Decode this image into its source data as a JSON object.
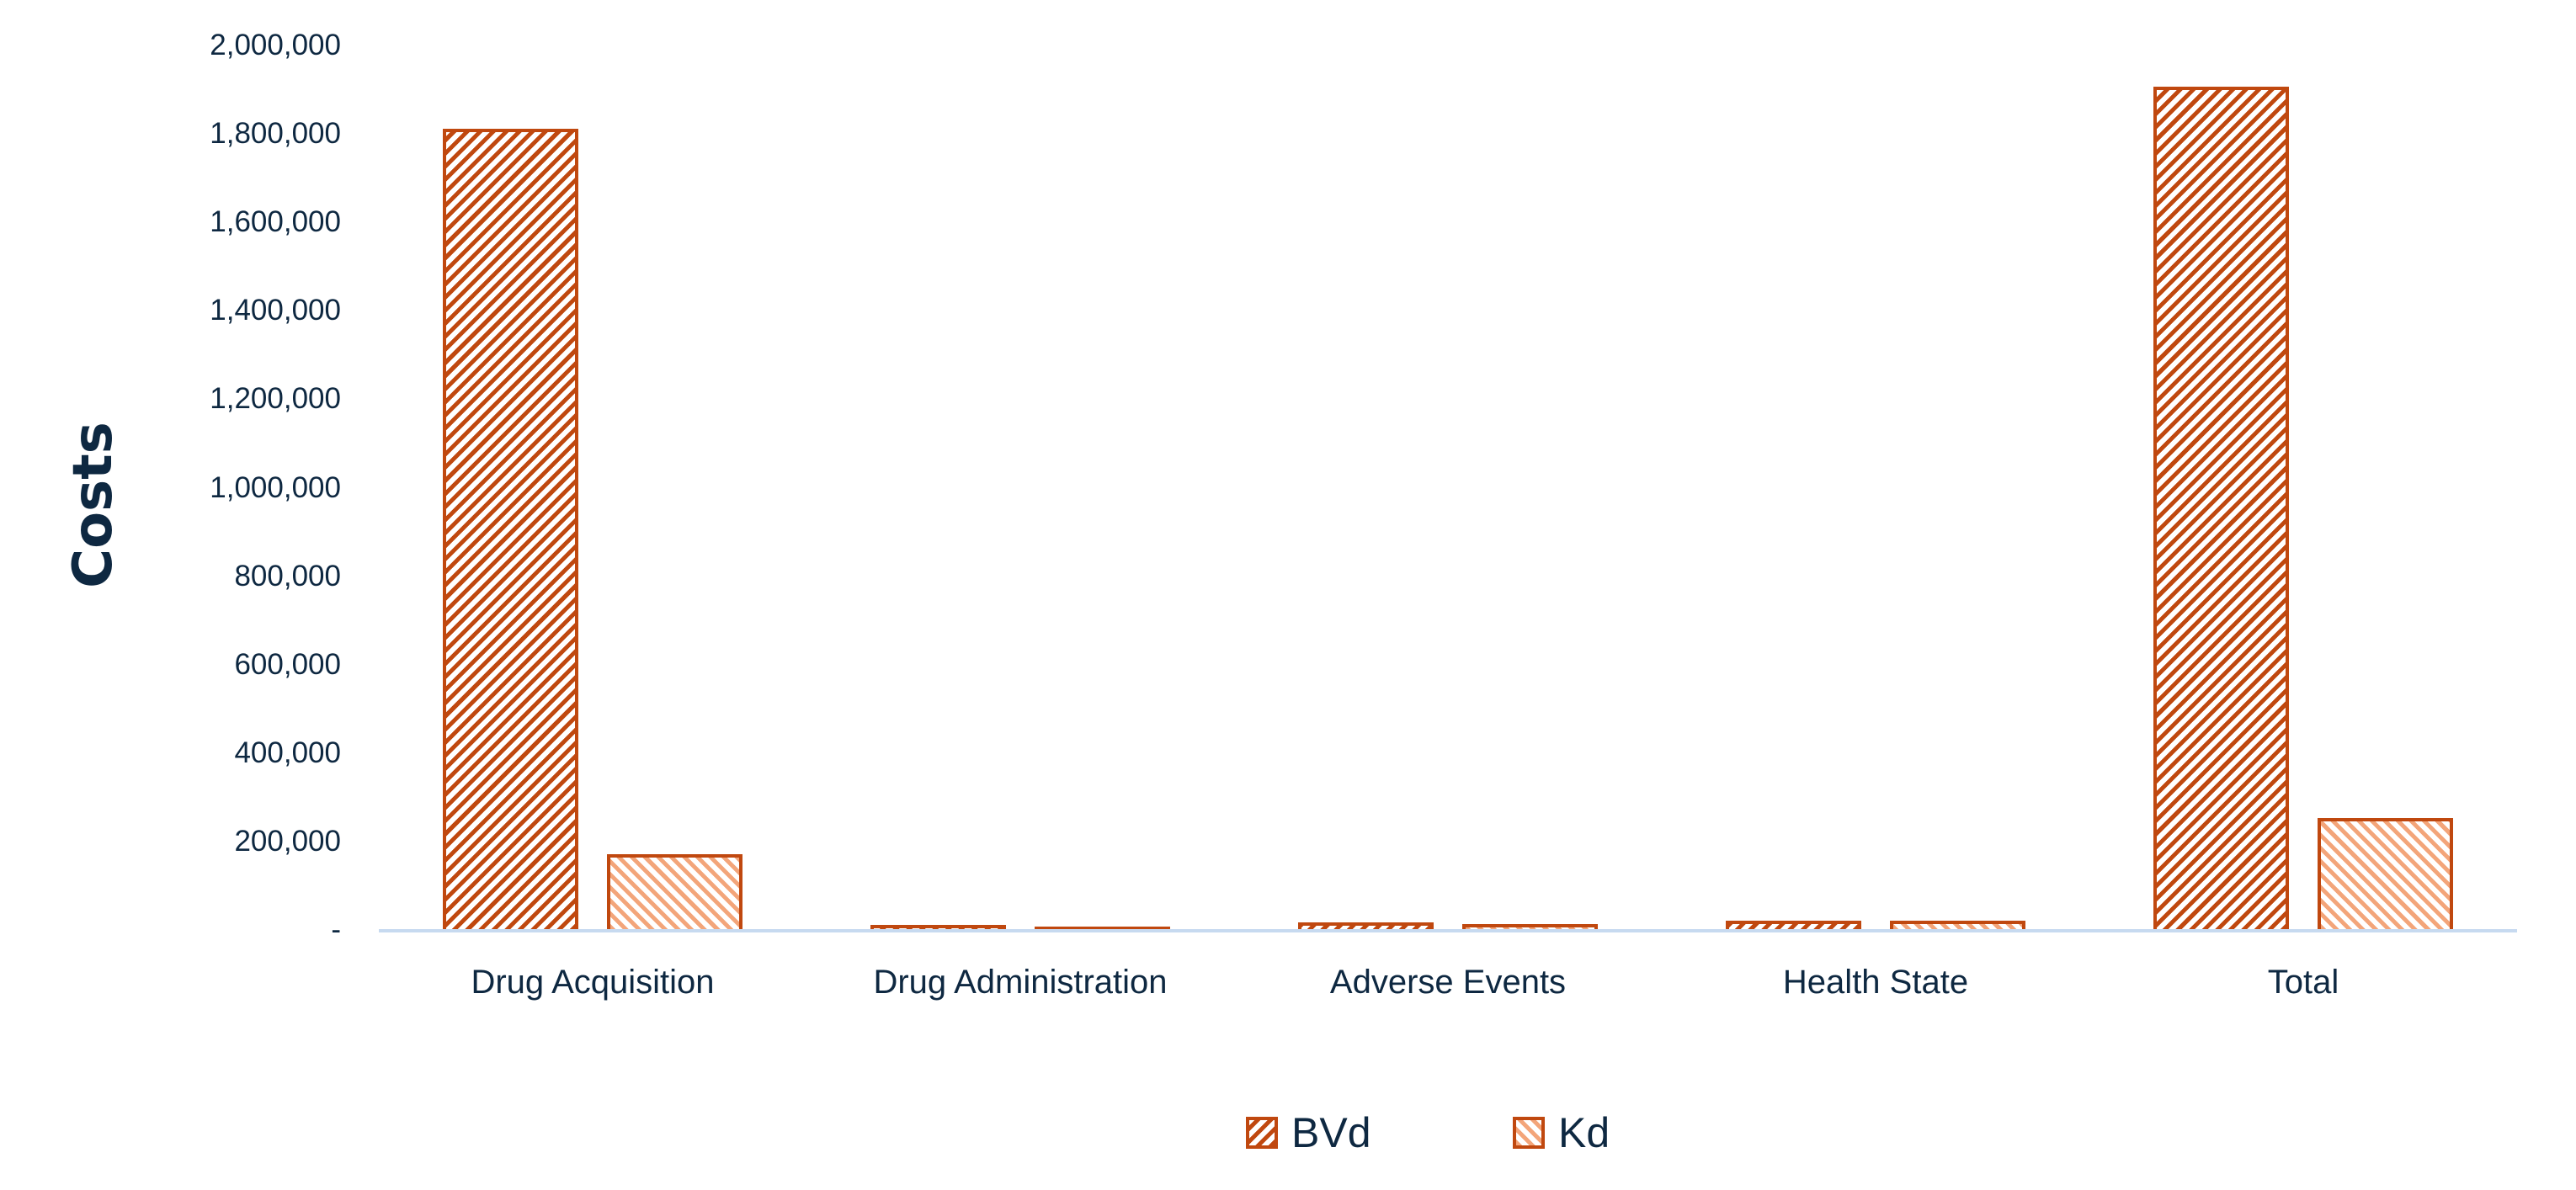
{
  "chart_data": {
    "type": "bar",
    "title": "",
    "xlabel": "",
    "ylabel": "Costs",
    "ylim": [
      0,
      2000000
    ],
    "yticks": [
      0,
      200000,
      400000,
      600000,
      800000,
      1000000,
      1200000,
      1400000,
      1600000,
      1800000,
      2000000
    ],
    "ytick_labels": [
      "-",
      "200,000",
      "400,000",
      "600,000",
      "800,000",
      "1,000,000",
      "1,200,000",
      "1,400,000",
      "1,600,000",
      "1,800,000",
      "2,000,000"
    ],
    "categories": [
      "Drug Acquisition",
      "Drug Administration",
      "Adverse Events",
      "Health State",
      "Total"
    ],
    "series": [
      {
        "name": "BVd",
        "values": [
          1811000,
          12000,
          17000,
          21000,
          1907000
        ],
        "color": "#c0480f",
        "pattern": "forward-diagonal-hatch"
      },
      {
        "name": "Kd",
        "values": [
          171000,
          7000,
          13000,
          20000,
          253000
        ],
        "color": "#f3a57a",
        "border": "#c0480f",
        "pattern": "backward-diagonal-hatch"
      }
    ],
    "grid": false,
    "legend_position": "bottom"
  },
  "legend": {
    "items": [
      {
        "label": "BVd"
      },
      {
        "label": "Kd"
      }
    ]
  },
  "colors": {
    "text": "#0e2841",
    "bvd": "#c0480f",
    "kd_hatch": "#f3a57a",
    "axis": "#c7daf0"
  }
}
